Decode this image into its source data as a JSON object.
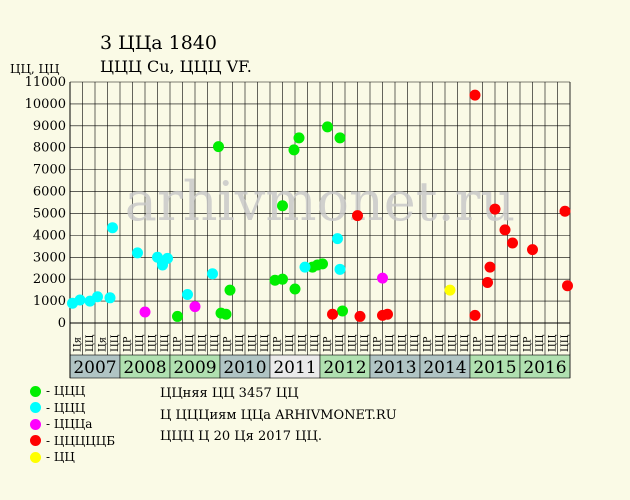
{
  "title": "3 ЦЦа 1840",
  "subtitle": "ЦЦЦ Cu, ЦЦЦ VF.",
  "y_axis_label": "ЦЦ, ЦЦ",
  "watermark": "arhivmonet.ru",
  "notes": [
    "ЦЦняя ЦЦ 3457 ЦЦ",
    "Ц ЦЦЦиям ЦЦа ARHIVMONET.RU",
    "ЦЦЦ Ц 20 Ця 2017 ЦЦ."
  ],
  "legend": [
    {
      "label": "- ЦЦЦ",
      "color": "#00ee00"
    },
    {
      "label": "- ЦЦЦ",
      "color": "#00ffff"
    },
    {
      "label": "- ЦЦЦа",
      "color": "#ff00ff"
    },
    {
      "label": "- ЦЦЦЦЦБ",
      "color": "#ff0000"
    },
    {
      "label": "- ЦЦ",
      "color": "#ffff00"
    }
  ],
  "chart_data": {
    "type": "scatter",
    "ylim": [
      0,
      11000
    ],
    "yticks": [
      0,
      1000,
      2000,
      3000,
      4000,
      5000,
      6000,
      7000,
      8000,
      9000,
      10000,
      11000
    ],
    "grid": true,
    "quarter_labels": [
      "Ця",
      "ЦЦ",
      "Ця",
      "ЦЦ",
      "ЦР",
      "ЦЦ",
      "ЦЦ",
      "ЦЦ",
      "ЦР",
      "ЦЦ",
      "ЦЦ",
      "ЦЦ",
      "ЦР",
      "ЦЦ",
      "ЦЦ",
      "ЦЦ",
      "ЦР",
      "ЦЦ",
      "ЦЦ",
      "ЦЦ",
      "ЦР",
      "ЦЦ",
      "ЦЦ",
      "ЦЦ",
      "ЦР",
      "ЦЦ",
      "ЦЦ",
      "ЦЦ",
      "ЦР",
      "ЦЦ",
      "ЦЦ",
      "ЦЦ",
      "ЦР",
      "ЦЦ",
      "ЦЦ",
      "ЦЦ",
      "ЦР",
      "ЦЦ",
      "ЦЦ",
      "ЦЦ"
    ],
    "years": [
      {
        "label": "2007",
        "color": "#b0c4c4"
      },
      {
        "label": "2008",
        "color": "#b0e0b0"
      },
      {
        "label": "2009",
        "color": "#b0e0b0"
      },
      {
        "label": "2010",
        "color": "#b0c4c4"
      },
      {
        "label": "2011",
        "color": "#eaeaea"
      },
      {
        "label": "2012",
        "color": "#b0e0b0"
      },
      {
        "label": "2013",
        "color": "#b0c4c4"
      },
      {
        "label": "2014",
        "color": "#b0c4c4"
      },
      {
        "label": "2015",
        "color": "#b0e0b0"
      },
      {
        "label": "2016",
        "color": "#b0e0b0"
      }
    ],
    "series": [
      {
        "color": "#00ee00",
        "points": [
          {
            "x": 2009.97,
            "y": 8050
          },
          {
            "x": 2011.25,
            "y": 5350
          },
          {
            "x": 2011.48,
            "y": 7900
          },
          {
            "x": 2011.58,
            "y": 8450
          },
          {
            "x": 2012.15,
            "y": 8950
          },
          {
            "x": 2012.4,
            "y": 8450
          },
          {
            "x": 2011.1,
            "y": 1950
          },
          {
            "x": 2011.25,
            "y": 2000
          },
          {
            "x": 2011.5,
            "y": 1550
          },
          {
            "x": 2011.85,
            "y": 2550
          },
          {
            "x": 2011.95,
            "y": 2650
          },
          {
            "x": 2012.05,
            "y": 2700
          },
          {
            "x": 2012.45,
            "y": 550
          },
          {
            "x": 2009.15,
            "y": 300
          },
          {
            "x": 2010.02,
            "y": 450
          },
          {
            "x": 2010.12,
            "y": 400
          },
          {
            "x": 2010.2,
            "y": 1500
          }
        ]
      },
      {
        "color": "#00ffff",
        "points": [
          {
            "x": 2007.05,
            "y": 900
          },
          {
            "x": 2007.2,
            "y": 1050
          },
          {
            "x": 2007.4,
            "y": 1000
          },
          {
            "x": 2007.55,
            "y": 1200
          },
          {
            "x": 2007.8,
            "y": 1150
          },
          {
            "x": 2007.85,
            "y": 4350
          },
          {
            "x": 2008.35,
            "y": 3200
          },
          {
            "x": 2008.75,
            "y": 3000
          },
          {
            "x": 2008.85,
            "y": 2650
          },
          {
            "x": 2008.95,
            "y": 2950
          },
          {
            "x": 2009.35,
            "y": 1300
          },
          {
            "x": 2009.85,
            "y": 2250
          },
          {
            "x": 2011.7,
            "y": 2550
          },
          {
            "x": 2012.35,
            "y": 3850
          },
          {
            "x": 2012.4,
            "y": 2450
          }
        ]
      },
      {
        "color": "#ff00ff",
        "points": [
          {
            "x": 2008.5,
            "y": 500
          },
          {
            "x": 2009.5,
            "y": 750
          },
          {
            "x": 2013.25,
            "y": 2050
          }
        ]
      },
      {
        "color": "#ff0000",
        "points": [
          {
            "x": 2012.25,
            "y": 400
          },
          {
            "x": 2012.75,
            "y": 4900
          },
          {
            "x": 2012.8,
            "y": 300
          },
          {
            "x": 2013.25,
            "y": 350
          },
          {
            "x": 2013.35,
            "y": 400
          },
          {
            "x": 2015.1,
            "y": 10400
          },
          {
            "x": 2015.1,
            "y": 350
          },
          {
            "x": 2015.35,
            "y": 1850
          },
          {
            "x": 2015.4,
            "y": 2550
          },
          {
            "x": 2015.5,
            "y": 5200
          },
          {
            "x": 2015.7,
            "y": 4250
          },
          {
            "x": 2015.85,
            "y": 3650
          },
          {
            "x": 2016.25,
            "y": 3350
          },
          {
            "x": 2016.9,
            "y": 5100
          },
          {
            "x": 2016.95,
            "y": 1700
          }
        ]
      },
      {
        "color": "#ffff00",
        "points": [
          {
            "x": 2014.6,
            "y": 1500
          }
        ]
      }
    ]
  }
}
